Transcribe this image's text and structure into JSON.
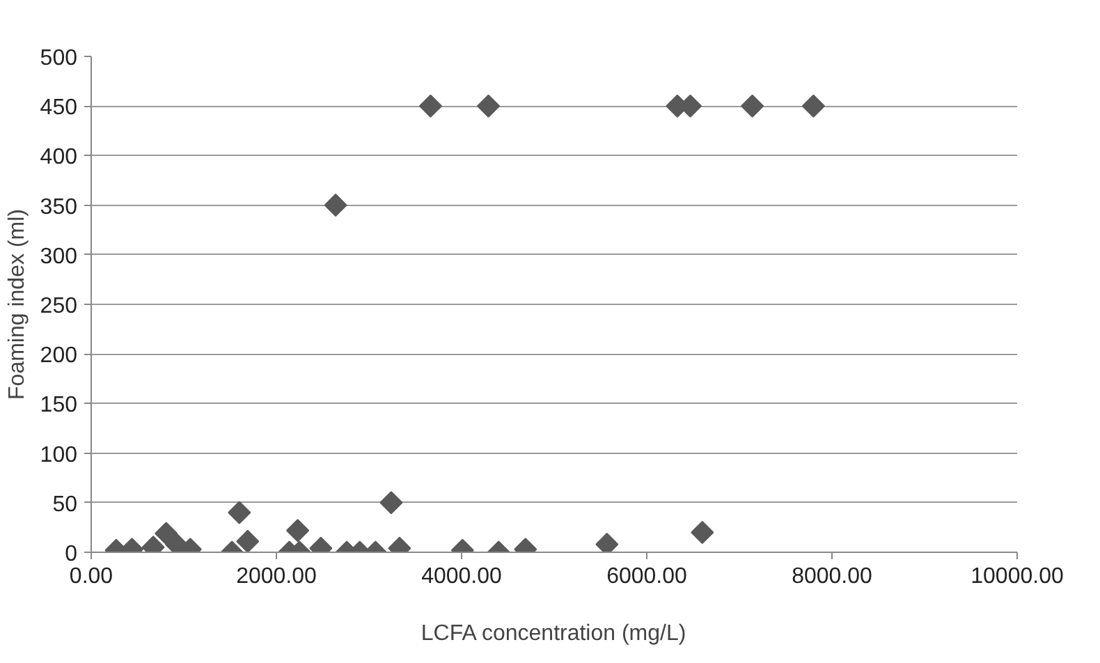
{
  "chart_data": {
    "type": "scatter",
    "xlabel": "LCFA concentration (mg/L)",
    "ylabel": "Foaming index (ml)",
    "x": [
      270,
      440,
      670,
      810,
      920,
      1070,
      1520,
      1600,
      1690,
      2140,
      2230,
      2250,
      2480,
      2760,
      2900,
      3070,
      3240,
      3330,
      4010,
      4400,
      4690,
      5570,
      6600,
      2640,
      3665,
      4290,
      6330,
      6470,
      7140,
      7800
    ],
    "series": [
      {
        "color": "#595959",
        "values": [
          2,
          3,
          5,
          19,
          8,
          3,
          0,
          40,
          11,
          0,
          22,
          0,
          4,
          0,
          0,
          0,
          50,
          4,
          2,
          0,
          3,
          8,
          20,
          350,
          450,
          450,
          450,
          450,
          450,
          450
        ]
      }
    ],
    "xlim": [
      0,
      10000
    ],
    "ylim": [
      0,
      500
    ],
    "xticks": [
      {
        "value": 0,
        "label": "0.00"
      },
      {
        "value": 2000,
        "label": "2000.00"
      },
      {
        "value": 4000,
        "label": "4000.00"
      },
      {
        "value": 6000,
        "label": "6000.00"
      },
      {
        "value": 8000,
        "label": "8000.00"
      },
      {
        "value": 10000,
        "label": "10000.00"
      }
    ],
    "yticks": [
      0,
      50,
      100,
      150,
      200,
      250,
      300,
      350,
      400,
      450,
      500
    ],
    "grid": "y",
    "marker": "diamond"
  }
}
